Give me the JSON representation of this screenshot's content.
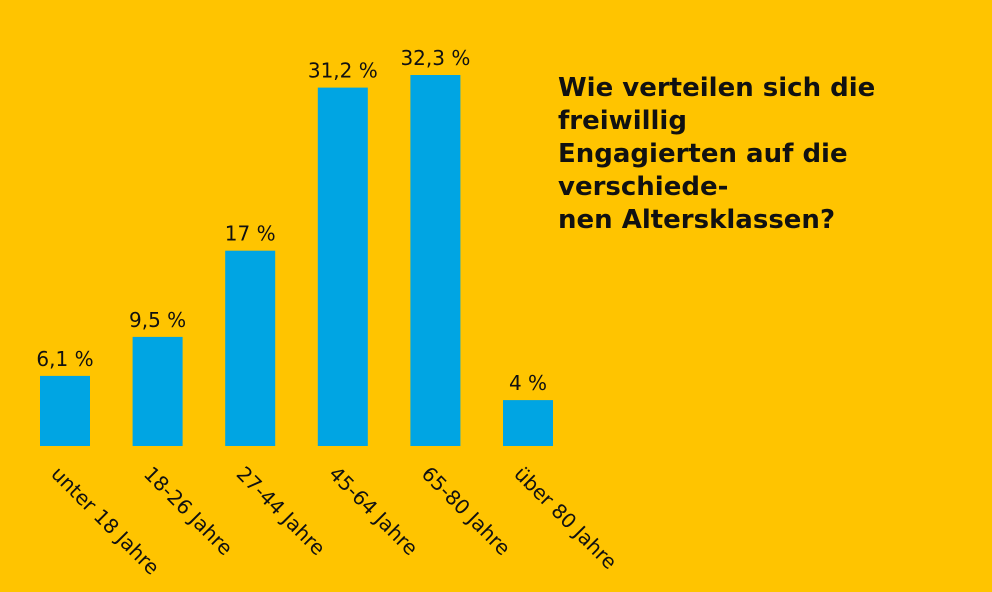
{
  "chart_data": {
    "type": "bar",
    "title": "Wie verteilen sich die freiwillig\nEngagierten auf die verschiede-\nnen Altersklassen?",
    "categories": [
      "unter 18 Jahre",
      "18-26 Jahre",
      "27-44 Jahre",
      "45-64 Jahre",
      "65-80 Jahre",
      "über 80 Jahre"
    ],
    "values": [
      6.1,
      9.5,
      17,
      31.2,
      32.3,
      4
    ],
    "value_labels": [
      "6,1 %",
      "9,5 %",
      "17 %",
      "31,2 %",
      "32,3 %",
      "4 %"
    ],
    "unit": "%",
    "xlabel": "",
    "ylabel": "",
    "ylim": [
      0,
      32.3
    ],
    "grid": false,
    "legend": "none",
    "colors": {
      "background": "#ffc400",
      "bar": "#00a5e3",
      "text": "#111111"
    }
  }
}
